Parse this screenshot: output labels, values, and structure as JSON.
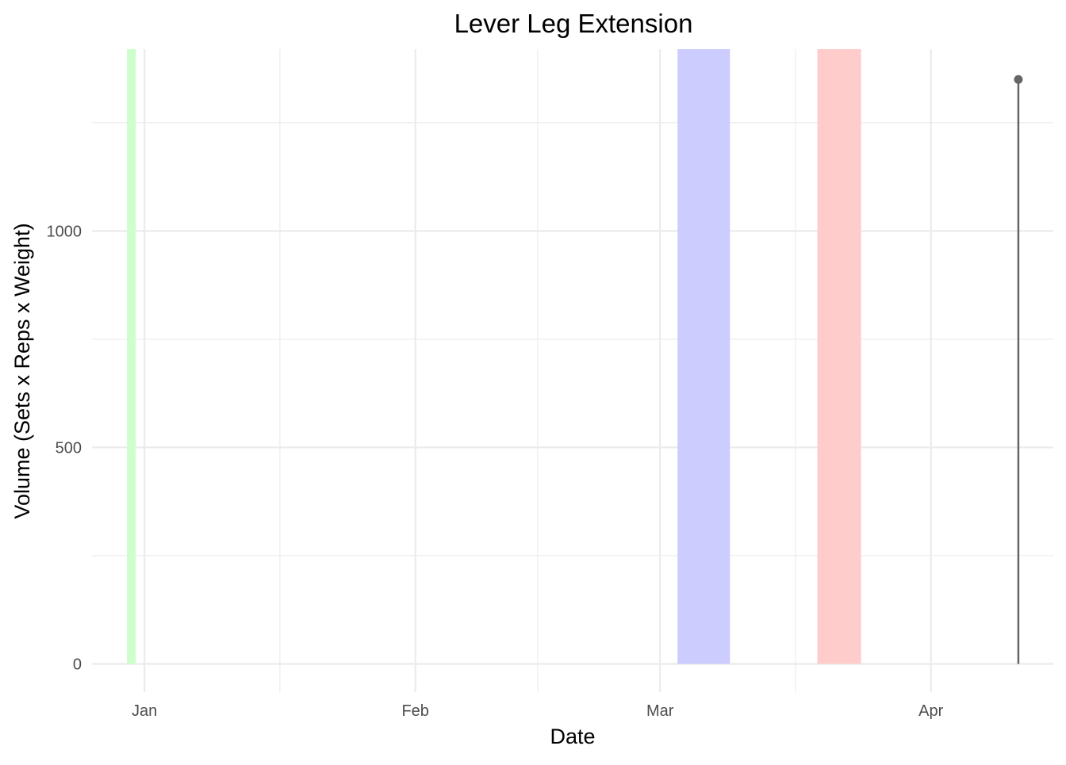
{
  "chart_data": {
    "type": "line",
    "title": "Lever Leg Extension",
    "xlabel": "Date",
    "ylabel": "Volume (Sets x Reps x Weight)",
    "x_ticks": [
      {
        "label": "Jan",
        "date": "2025-01-01"
      },
      {
        "label": "Feb",
        "date": "2025-02-01"
      },
      {
        "label": "Mar",
        "date": "2025-03-01"
      },
      {
        "label": "Apr",
        "date": "2025-04-01"
      }
    ],
    "y_ticks": [
      0,
      500,
      1000
    ],
    "xlim": [
      "2024-12-26",
      "2025-04-15"
    ],
    "ylim": [
      -65,
      1420
    ],
    "grid": true,
    "shaded_periods": [
      {
        "start": "2024-12-30",
        "end": "2024-12-31",
        "color": "#ccffcc"
      },
      {
        "start": "2025-03-03",
        "end": "2025-03-09",
        "color": "#ccccff"
      },
      {
        "start": "2025-03-19",
        "end": "2025-03-24",
        "color": "#ffcccc"
      }
    ],
    "series": [
      {
        "points": [
          {
            "x": "2025-04-11",
            "y": 1350
          }
        ],
        "color": "#666666"
      }
    ]
  }
}
